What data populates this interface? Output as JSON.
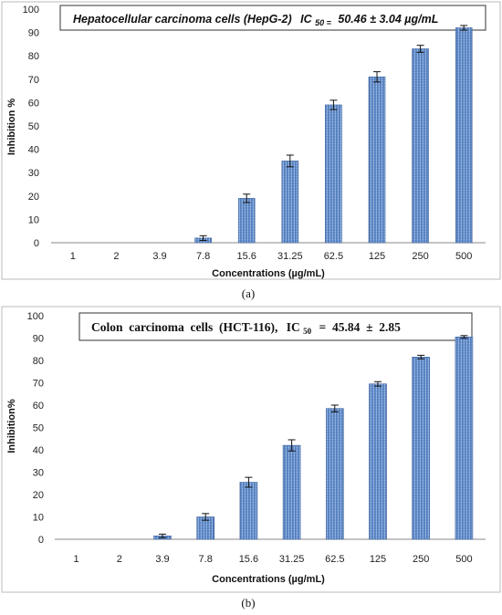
{
  "chart_data": [
    {
      "type": "bar",
      "title": "Hepatocellular carcinoma cells (HepG-2)",
      "title_ic": "IC",
      "title_ic_sub": "50 =",
      "title_ic_value": "50.46 ± 3.04 µg/mL",
      "xlabel": "Concentrations (µg/mL)",
      "ylabel": "Inhibition %",
      "caption": "(a)",
      "ylim": [
        0,
        100
      ],
      "yticks": [
        "0",
        "10",
        "20",
        "30",
        "40",
        "50",
        "60",
        "70",
        "80",
        "90",
        "100"
      ],
      "categories": [
        "1",
        "2",
        "3.9",
        "7.8",
        "15.6",
        "31.25",
        "62.5",
        "125",
        "250",
        "500"
      ],
      "values": [
        0,
        0,
        0,
        2,
        19,
        35,
        59,
        71,
        83,
        92
      ],
      "errors": [
        0,
        0,
        0,
        1,
        1.8,
        2.5,
        2,
        2.2,
        1.5,
        1
      ],
      "grid": false,
      "bar_color": "#4f7fc1"
    },
    {
      "type": "bar",
      "title": "Colon  carcinoma  cells  (HCT-116),",
      "title_ic": "IC",
      "title_ic_sub": "50",
      "title_ic_value": "=  45.84  ±  2.85",
      "xlabel": "Concentrations (µg/mL)",
      "ylabel": "Inhibition%",
      "caption": "(b)",
      "ylim": [
        0,
        100
      ],
      "yticks": [
        "0",
        "10",
        "20",
        "30",
        "40",
        "50",
        "60",
        "70",
        "80",
        "90",
        "100"
      ],
      "categories": [
        "1",
        "2",
        "3.9",
        "7.8",
        "15.6",
        "31.25",
        "62.5",
        "125",
        "250",
        "500"
      ],
      "values": [
        0,
        0,
        1.5,
        10,
        25.5,
        42,
        58.5,
        69.5,
        81.5,
        90.5
      ],
      "errors": [
        0,
        0,
        0.8,
        1.5,
        2.2,
        2.5,
        1.5,
        1,
        0.8,
        0.6
      ],
      "grid": false,
      "bar_color": "#4f7fc1"
    }
  ]
}
